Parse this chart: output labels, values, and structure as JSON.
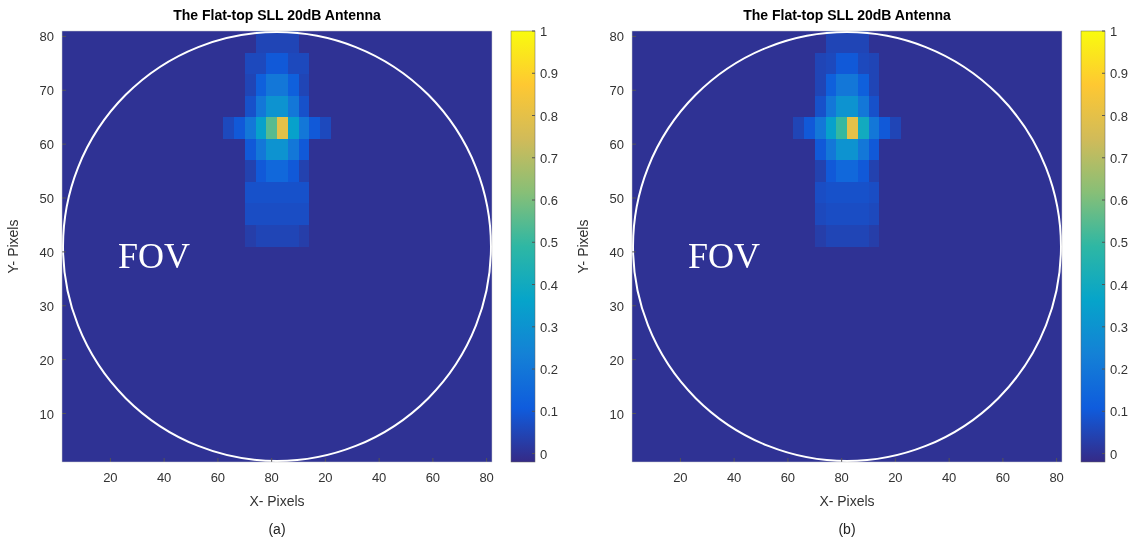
{
  "chart_data": [
    {
      "type": "heatmap",
      "title": "The Flat-top SLL 20dB Antenna",
      "xlabel": "X- Pixels",
      "ylabel": "Y- Pixels",
      "annotations": [
        "FOV",
        "(a)"
      ],
      "categories": [
        null,
        null,
        null,
        null,
        "20",
        null,
        null,
        null,
        null,
        "40",
        null,
        null,
        null,
        null,
        "60",
        null,
        null,
        null,
        null,
        "80",
        null,
        null,
        null,
        null,
        "20",
        null,
        null,
        null,
        null,
        "40",
        null,
        null,
        null,
        null,
        "60",
        null,
        null,
        null,
        null,
        "80"
      ],
      "ylim": [
        1,
        81
      ],
      "yticks": [
        10,
        20,
        30,
        40,
        50,
        60,
        70,
        80
      ],
      "clim": [
        -0.02,
        1
      ],
      "cticks": [
        0,
        0.1,
        0.2,
        0.3,
        0.4,
        0.5,
        0.6,
        0.7,
        0.8,
        0.9,
        1
      ],
      "cells": [
        [
          0,
          0,
          0,
          0,
          0,
          0,
          0,
          0,
          0,
          0,
          0,
          0,
          0,
          0,
          0,
          0,
          0,
          0,
          0.05,
          0.05,
          0.05,
          0.05,
          0,
          0,
          0,
          0,
          0,
          0,
          0,
          0,
          0,
          0,
          0,
          0,
          0,
          0,
          0,
          0,
          0,
          0
        ],
        [
          0,
          0,
          0,
          0,
          0,
          0,
          0,
          0,
          0,
          0,
          0,
          0,
          0,
          0,
          0,
          0,
          0,
          0.06,
          0.06,
          0.1,
          0.1,
          0.06,
          0.06,
          0,
          0,
          0,
          0,
          0,
          0,
          0,
          0,
          0,
          0,
          0,
          0,
          0,
          0,
          0,
          0,
          0
        ],
        [
          0,
          0,
          0,
          0,
          0,
          0,
          0,
          0,
          0,
          0,
          0,
          0,
          0,
          0,
          0,
          0,
          0,
          0.05,
          0.12,
          0.2,
          0.2,
          0.12,
          0.05,
          0,
          0,
          0,
          0,
          0,
          0,
          0,
          0,
          0,
          0,
          0,
          0,
          0,
          0,
          0,
          0,
          0
        ],
        [
          0,
          0,
          0,
          0,
          0,
          0,
          0,
          0,
          0,
          0,
          0,
          0,
          0,
          0,
          0,
          0,
          0,
          0.08,
          0.2,
          0.3,
          0.3,
          0.2,
          0.08,
          0,
          0,
          0,
          0,
          0,
          0,
          0,
          0,
          0,
          0,
          0,
          0,
          0,
          0,
          0,
          0,
          0
        ],
        [
          0,
          0,
          0,
          0,
          0,
          0,
          0,
          0,
          0,
          0,
          0,
          0,
          0,
          0,
          0,
          0.06,
          0.1,
          0.2,
          0.35,
          0.55,
          0.8,
          0.35,
          0.2,
          0.1,
          0.06,
          0,
          0,
          0,
          0,
          0,
          0,
          0,
          0,
          0,
          0,
          0,
          0,
          0,
          0,
          0
        ],
        [
          0,
          0,
          0,
          0,
          0,
          0,
          0,
          0,
          0,
          0,
          0,
          0,
          0,
          0,
          0,
          0,
          0,
          0.1,
          0.2,
          0.3,
          0.3,
          0.2,
          0.1,
          0,
          0,
          0,
          0,
          0,
          0,
          0,
          0,
          0,
          0,
          0,
          0,
          0,
          0,
          0,
          0,
          0
        ],
        [
          0,
          0,
          0,
          0,
          0,
          0,
          0,
          0,
          0,
          0,
          0,
          0,
          0,
          0,
          0,
          0,
          0,
          0.04,
          0.1,
          0.15,
          0.15,
          0.1,
          0.04,
          0,
          0,
          0,
          0,
          0,
          0,
          0,
          0,
          0,
          0,
          0,
          0,
          0,
          0,
          0,
          0,
          0
        ],
        [
          0,
          0,
          0,
          0,
          0,
          0,
          0,
          0,
          0,
          0,
          0,
          0,
          0,
          0,
          0,
          0,
          0,
          0.08,
          0.08,
          0.08,
          0.08,
          0.08,
          0.08,
          0,
          0,
          0,
          0,
          0,
          0,
          0,
          0,
          0,
          0,
          0,
          0,
          0,
          0,
          0,
          0,
          0
        ],
        [
          0,
          0,
          0,
          0,
          0,
          0,
          0,
          0,
          0,
          0,
          0,
          0,
          0,
          0,
          0,
          0,
          0,
          0.07,
          0.07,
          0.07,
          0.07,
          0.07,
          0.07,
          0,
          0,
          0,
          0,
          0,
          0,
          0,
          0,
          0,
          0,
          0,
          0,
          0,
          0,
          0,
          0,
          0
        ],
        [
          0,
          0,
          0,
          0,
          0,
          0,
          0,
          0,
          0,
          0,
          0,
          0,
          0,
          0,
          0,
          0,
          0,
          0.03,
          0.05,
          0.05,
          0.05,
          0.05,
          0.03,
          0,
          0,
          0,
          0,
          0,
          0,
          0,
          0,
          0,
          0,
          0,
          0,
          0,
          0,
          0,
          0,
          0
        ],
        [
          0,
          0,
          0,
          0,
          0,
          0,
          0,
          0,
          0,
          0,
          0,
          0,
          0,
          0,
          0,
          0,
          0,
          0,
          0,
          0,
          0,
          0,
          0,
          0,
          0,
          0,
          0,
          0,
          0,
          0,
          0,
          0,
          0,
          0,
          0,
          0,
          0,
          0,
          0,
          0
        ],
        [
          0,
          0,
          0,
          0,
          0,
          0,
          0,
          0,
          0,
          0,
          0,
          0,
          0,
          0,
          0,
          0,
          0,
          0,
          0,
          0,
          0,
          0,
          0,
          0,
          0,
          0,
          0,
          0,
          0,
          0,
          0,
          0,
          0,
          0,
          0,
          0,
          0,
          0,
          0,
          0
        ],
        [
          0,
          0,
          0,
          0,
          0,
          0,
          0,
          0,
          0,
          0,
          0,
          0,
          0,
          0,
          0,
          0,
          0,
          0,
          0,
          0,
          0,
          0,
          0,
          0,
          0,
          0,
          0,
          0,
          0,
          0,
          0,
          0,
          0,
          0,
          0,
          0,
          0,
          0,
          0,
          0
        ],
        [
          0,
          0,
          0,
          0,
          0,
          0,
          0,
          0,
          0,
          0,
          0,
          0,
          0,
          0,
          0,
          0,
          0,
          0,
          0,
          0,
          0,
          0,
          0,
          0,
          0,
          0,
          0,
          0,
          0,
          0,
          0,
          0,
          0,
          0,
          0,
          0,
          0,
          0,
          0,
          0
        ],
        [
          0,
          0,
          0,
          0,
          0,
          0,
          0,
          0,
          0,
          0,
          0,
          0,
          0,
          0,
          0,
          0,
          0,
          0,
          0,
          0,
          0,
          0,
          0,
          0,
          0,
          0,
          0,
          0,
          0,
          0,
          0,
          0,
          0,
          0,
          0,
          0,
          0,
          0,
          0,
          0
        ],
        [
          0,
          0,
          0,
          0,
          0,
          0,
          0,
          0,
          0,
          0,
          0,
          0,
          0,
          0,
          0,
          0,
          0,
          0,
          0,
          0,
          0,
          0,
          0,
          0,
          0,
          0,
          0,
          0,
          0,
          0,
          0,
          0,
          0,
          0,
          0,
          0,
          0,
          0,
          0,
          0
        ],
        [
          0,
          0,
          0,
          0,
          0,
          0,
          0,
          0,
          0,
          0,
          0,
          0,
          0,
          0,
          0,
          0,
          0,
          0,
          0,
          0,
          0,
          0,
          0,
          0,
          0,
          0,
          0,
          0,
          0,
          0,
          0,
          0,
          0,
          0,
          0,
          0,
          0,
          0,
          0,
          0
        ],
        [
          0,
          0,
          0,
          0,
          0,
          0,
          0,
          0,
          0,
          0,
          0,
          0,
          0,
          0,
          0,
          0,
          0,
          0,
          0,
          0,
          0,
          0,
          0,
          0,
          0,
          0,
          0,
          0,
          0,
          0,
          0,
          0,
          0,
          0,
          0,
          0,
          0,
          0,
          0,
          0
        ],
        [
          0,
          0,
          0,
          0,
          0,
          0,
          0,
          0,
          0,
          0,
          0,
          0,
          0,
          0,
          0,
          0,
          0,
          0,
          0,
          0,
          0,
          0,
          0,
          0,
          0,
          0,
          0,
          0,
          0,
          0,
          0,
          0,
          0,
          0,
          0,
          0,
          0,
          0,
          0,
          0
        ],
        [
          0,
          0,
          0,
          0,
          0,
          0,
          0,
          0,
          0,
          0,
          0,
          0,
          0,
          0,
          0,
          0,
          0,
          0,
          0,
          0,
          0,
          0,
          0,
          0,
          0,
          0,
          0,
          0,
          0,
          0,
          0,
          0,
          0,
          0,
          0,
          0,
          0,
          0,
          0,
          0
        ]
      ]
    },
    {
      "type": "heatmap",
      "title": "The Flat-top SLL 20dB Antenna",
      "xlabel": "X- Pixels",
      "ylabel": "Y- Pixels",
      "annotations": [
        "FOV",
        "(b)"
      ],
      "categories": [
        null,
        null,
        null,
        null,
        "20",
        null,
        null,
        null,
        null,
        "40",
        null,
        null,
        null,
        null,
        "60",
        null,
        null,
        null,
        null,
        "80",
        null,
        null,
        null,
        null,
        "20",
        null,
        null,
        null,
        null,
        "40",
        null,
        null,
        null,
        null,
        "60",
        null,
        null,
        null,
        null,
        "80"
      ],
      "ylim": [
        1,
        81
      ],
      "yticks": [
        10,
        20,
        30,
        40,
        50,
        60,
        70,
        80
      ],
      "clim": [
        -0.02,
        1
      ],
      "cticks": [
        0,
        0.1,
        0.2,
        0.3,
        0.4,
        0.5,
        0.6,
        0.7,
        0.8,
        0.9,
        1
      ],
      "cells": [
        [
          0,
          0,
          0,
          0,
          0,
          0,
          0,
          0,
          0,
          0,
          0,
          0,
          0,
          0,
          0,
          0,
          0,
          0,
          0.05,
          0.05,
          0.05,
          0.05,
          0,
          0,
          0,
          0,
          0,
          0,
          0,
          0,
          0,
          0,
          0,
          0,
          0,
          0,
          0,
          0,
          0,
          0
        ],
        [
          0,
          0,
          0,
          0,
          0,
          0,
          0,
          0,
          0,
          0,
          0,
          0,
          0,
          0,
          0,
          0,
          0,
          0.05,
          0.06,
          0.1,
          0.1,
          0.06,
          0.05,
          0,
          0,
          0,
          0,
          0,
          0,
          0,
          0,
          0,
          0,
          0,
          0,
          0,
          0,
          0,
          0,
          0
        ],
        [
          0,
          0,
          0,
          0,
          0,
          0,
          0,
          0,
          0,
          0,
          0,
          0,
          0,
          0,
          0,
          0,
          0,
          0.05,
          0.12,
          0.2,
          0.2,
          0.12,
          0.05,
          0,
          0,
          0,
          0,
          0,
          0,
          0,
          0,
          0,
          0,
          0,
          0,
          0,
          0,
          0,
          0,
          0
        ],
        [
          0,
          0,
          0,
          0,
          0,
          0,
          0,
          0,
          0,
          0,
          0,
          0,
          0,
          0,
          0,
          0,
          0,
          0.08,
          0.2,
          0.3,
          0.3,
          0.2,
          0.08,
          0,
          0,
          0,
          0,
          0,
          0,
          0,
          0,
          0,
          0,
          0,
          0,
          0,
          0,
          0,
          0,
          0
        ],
        [
          0,
          0,
          0,
          0,
          0,
          0,
          0,
          0,
          0,
          0,
          0,
          0,
          0,
          0,
          0,
          0.05,
          0.1,
          0.2,
          0.35,
          0.5,
          0.8,
          0.4,
          0.2,
          0.1,
          0.05,
          0,
          0,
          0,
          0,
          0,
          0,
          0,
          0,
          0,
          0,
          0,
          0,
          0,
          0,
          0
        ],
        [
          0,
          0,
          0,
          0,
          0,
          0,
          0,
          0,
          0,
          0,
          0,
          0,
          0,
          0,
          0,
          0,
          0,
          0.1,
          0.2,
          0.3,
          0.3,
          0.2,
          0.1,
          0,
          0,
          0,
          0,
          0,
          0,
          0,
          0,
          0,
          0,
          0,
          0,
          0,
          0,
          0,
          0,
          0
        ],
        [
          0,
          0,
          0,
          0,
          0,
          0,
          0,
          0,
          0,
          0,
          0,
          0,
          0,
          0,
          0,
          0,
          0,
          0.04,
          0.1,
          0.15,
          0.15,
          0.1,
          0.04,
          0,
          0,
          0,
          0,
          0,
          0,
          0,
          0,
          0,
          0,
          0,
          0,
          0,
          0,
          0,
          0,
          0
        ],
        [
          0,
          0,
          0,
          0,
          0,
          0,
          0,
          0,
          0,
          0,
          0,
          0,
          0,
          0,
          0,
          0,
          0,
          0.07,
          0.08,
          0.08,
          0.08,
          0.08,
          0.07,
          0,
          0,
          0,
          0,
          0,
          0,
          0,
          0,
          0,
          0,
          0,
          0,
          0,
          0,
          0,
          0,
          0
        ],
        [
          0,
          0,
          0,
          0,
          0,
          0,
          0,
          0,
          0,
          0,
          0,
          0,
          0,
          0,
          0,
          0,
          0,
          0.06,
          0.07,
          0.07,
          0.07,
          0.07,
          0.06,
          0,
          0,
          0,
          0,
          0,
          0,
          0,
          0,
          0,
          0,
          0,
          0,
          0,
          0,
          0,
          0,
          0
        ],
        [
          0,
          0,
          0,
          0,
          0,
          0,
          0,
          0,
          0,
          0,
          0,
          0,
          0,
          0,
          0,
          0,
          0,
          0.03,
          0.05,
          0.05,
          0.05,
          0.05,
          0.03,
          0,
          0,
          0,
          0,
          0,
          0,
          0,
          0,
          0,
          0,
          0,
          0,
          0,
          0,
          0,
          0,
          0
        ],
        [
          0,
          0,
          0,
          0,
          0,
          0,
          0,
          0,
          0,
          0,
          0,
          0,
          0,
          0,
          0,
          0,
          0,
          0,
          0,
          0,
          0,
          0,
          0,
          0,
          0,
          0,
          0,
          0,
          0,
          0,
          0,
          0,
          0,
          0,
          0,
          0,
          0,
          0,
          0,
          0
        ],
        [
          0,
          0,
          0,
          0,
          0,
          0,
          0,
          0,
          0,
          0,
          0,
          0,
          0,
          0,
          0,
          0,
          0,
          0,
          0,
          0,
          0,
          0,
          0,
          0,
          0,
          0,
          0,
          0,
          0,
          0,
          0,
          0,
          0,
          0,
          0,
          0,
          0,
          0,
          0,
          0
        ],
        [
          0,
          0,
          0,
          0,
          0,
          0,
          0,
          0,
          0,
          0,
          0,
          0,
          0,
          0,
          0,
          0,
          0,
          0,
          0,
          0,
          0,
          0,
          0,
          0,
          0,
          0,
          0,
          0,
          0,
          0,
          0,
          0,
          0,
          0,
          0,
          0,
          0,
          0,
          0,
          0
        ],
        [
          0,
          0,
          0,
          0,
          0,
          0,
          0,
          0,
          0,
          0,
          0,
          0,
          0,
          0,
          0,
          0,
          0,
          0,
          0,
          0,
          0,
          0,
          0,
          0,
          0,
          0,
          0,
          0,
          0,
          0,
          0,
          0,
          0,
          0,
          0,
          0,
          0,
          0,
          0,
          0
        ],
        [
          0,
          0,
          0,
          0,
          0,
          0,
          0,
          0,
          0,
          0,
          0,
          0,
          0,
          0,
          0,
          0,
          0,
          0,
          0,
          0,
          0,
          0,
          0,
          0,
          0,
          0,
          0,
          0,
          0,
          0,
          0,
          0,
          0,
          0,
          0,
          0,
          0,
          0,
          0,
          0
        ],
        [
          0,
          0,
          0,
          0,
          0,
          0,
          0,
          0,
          0,
          0,
          0,
          0,
          0,
          0,
          0,
          0,
          0,
          0,
          0,
          0,
          0,
          0,
          0,
          0,
          0,
          0,
          0,
          0,
          0,
          0,
          0,
          0,
          0,
          0,
          0,
          0,
          0,
          0,
          0,
          0
        ],
        [
          0,
          0,
          0,
          0,
          0,
          0,
          0,
          0,
          0,
          0,
          0,
          0,
          0,
          0,
          0,
          0,
          0,
          0,
          0,
          0,
          0,
          0,
          0,
          0,
          0,
          0,
          0,
          0,
          0,
          0,
          0,
          0,
          0,
          0,
          0,
          0,
          0,
          0,
          0,
          0
        ],
        [
          0,
          0,
          0,
          0,
          0,
          0,
          0,
          0,
          0,
          0,
          0,
          0,
          0,
          0,
          0,
          0,
          0,
          0,
          0,
          0,
          0,
          0,
          0,
          0,
          0,
          0,
          0,
          0,
          0,
          0,
          0,
          0,
          0,
          0,
          0,
          0,
          0,
          0,
          0,
          0
        ],
        [
          0,
          0,
          0,
          0,
          0,
          0,
          0,
          0,
          0,
          0,
          0,
          0,
          0,
          0,
          0,
          0,
          0,
          0,
          0,
          0,
          0,
          0,
          0,
          0,
          0,
          0,
          0,
          0,
          0,
          0,
          0,
          0,
          0,
          0,
          0,
          0,
          0,
          0,
          0,
          0
        ],
        [
          0,
          0,
          0,
          0,
          0,
          0,
          0,
          0,
          0,
          0,
          0,
          0,
          0,
          0,
          0,
          0,
          0,
          0,
          0,
          0,
          0,
          0,
          0,
          0,
          0,
          0,
          0,
          0,
          0,
          0,
          0,
          0,
          0,
          0,
          0,
          0,
          0,
          0,
          0,
          0
        ]
      ]
    }
  ]
}
